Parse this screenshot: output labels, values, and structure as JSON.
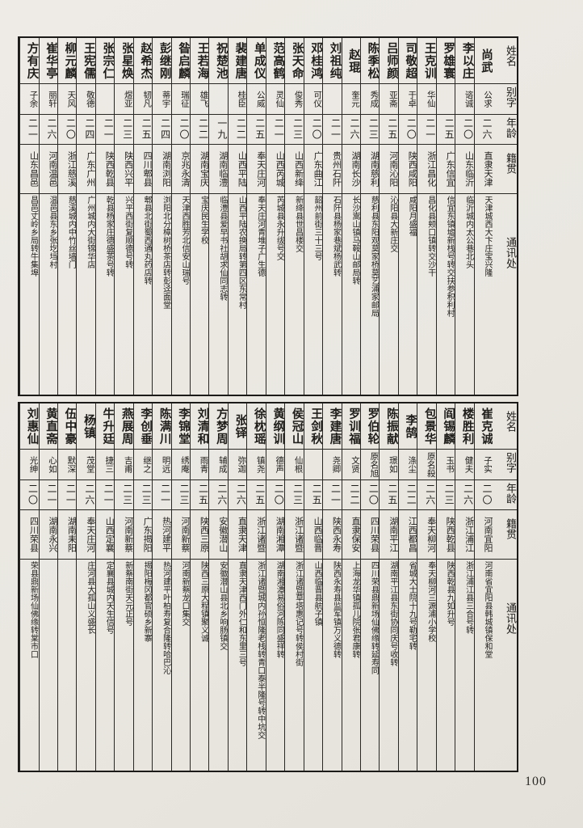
{
  "page": {
    "number": "100"
  },
  "colors": {
    "paper": "#eae7e1",
    "ink": "#1f1d1a",
    "rule": "#2a2825"
  },
  "headers": {
    "name": "姓名",
    "alias": "别字",
    "age": "年龄",
    "origin": "籍贯",
    "contact": "通讯处"
  },
  "tables": [
    {
      "people": [
        {
          "name": "尚武",
          "alias": "公求",
          "age": "二六",
          "origin": "直隶天津",
          "contact": "天津城西大卞庄宝兴隆"
        },
        {
          "name": "李以庄",
          "alias": "谘诚",
          "age": "二〇",
          "origin": "山东临沂",
          "contact": "临沂城内太公巷北头"
        },
        {
          "name": "罗雄寰",
          "alias": "",
          "age": "二五",
          "origin": "广东信宜",
          "contact": "信宜东镇墟新栈号转交扶参积利村"
        },
        {
          "name": "王克训",
          "alias": "华仙",
          "age": "二一",
          "origin": "浙江昌化",
          "contact": "昌化县颊口镇转交沙干"
        },
        {
          "name": "司敬超",
          "alias": "于卓",
          "age": "二〇",
          "origin": "陕西咸阳",
          "contact": "咸阳月盛福"
        },
        {
          "name": "吕师颜",
          "alias": "亚斋",
          "age": "二五",
          "origin": "河南沁阳",
          "contact": "沁阳县大新庄交"
        },
        {
          "name": "陈季松",
          "alias": "秀成",
          "age": "二三",
          "origin": "湖南慈利",
          "contact": "慈利县东阳观莫家桥莫艺浦家邮局"
        },
        {
          "name": "赵琨",
          "alias": "奎元",
          "age": "二六",
          "origin": "湖南长沙",
          "contact": "长沙嵩山镇马鞍山邮局转"
        },
        {
          "name": "刘祖纯",
          "alias": "",
          "age": "二一",
          "origin": "贵州石阡",
          "contact": "石阡县杨家巷斌杨武转"
        },
        {
          "name": "邓桂鸿",
          "alias": "可仪",
          "age": "二〇",
          "origin": "广东曲江",
          "contact": "韶州前街三十三号"
        },
        {
          "name": "张天命",
          "alias": "俊秀",
          "age": "二三",
          "origin": "山西新绛",
          "contact": "新绛县世昌楼交"
        },
        {
          "name": "范高鹤",
          "alias": "灵仙",
          "age": "二一",
          "origin": "山西芮城",
          "contact": "芮城县永升绂号交"
        },
        {
          "name": "单成仪",
          "alias": "公威",
          "age": "二五",
          "origin": "奉天庄河",
          "contact": "奉天庄河青堆子广生德"
        },
        {
          "name": "裴建唐",
          "alias": "桂臣",
          "age": "二二",
          "origin": "山西平陆",
          "contact": "山西平陆农换局转第四区东常村"
        },
        {
          "name": "祝楚池",
          "alias": "",
          "age": "一九",
          "origin": "湖南临澧",
          "contact": "临澧县爱早书社胡求仙同志转"
        },
        {
          "name": "王若海",
          "alias": "雄飞",
          "age": "二二",
          "origin": "湖南宝庆",
          "contact": "宝庆民生学校"
        },
        {
          "name": "昝启麟",
          "alias": "瑞征",
          "age": "二〇",
          "origin": "京兆永清",
          "contact": "天津西胜芳北信安山瑞号"
        },
        {
          "name": "彭继刚",
          "alias": "蒂宇",
          "age": "二四",
          "origin": "湖南浏阳",
          "contact": "浏阳北分樟树桥茶店转彭迳面堂"
        },
        {
          "name": "赵希杰",
          "alias": "韧凡",
          "age": "二五",
          "origin": "四川郫县",
          "contact": "郫县北街蜀西通丸药店转"
        },
        {
          "name": "张星焕",
          "alias": "煜亚",
          "age": "二三",
          "origin": "陕西兴平",
          "contact": "兴平西街复顺德号转"
        },
        {
          "name": "张宗仁",
          "alias": "",
          "age": "二一",
          "origin": "陕西乾县",
          "contact": "乾县杨家庄德盛茶号转"
        },
        {
          "name": "王宪儒",
          "alias": "敬德",
          "age": "二四",
          "origin": "广东广州",
          "contact": "广州城内大街锦华店"
        },
        {
          "name": "柳元麟",
          "alias": "天风",
          "age": "二〇",
          "origin": "浙江慈溪",
          "contact": "慈溪城内中竹丝墙门"
        },
        {
          "name": "崔华亭",
          "alias": "丽轩",
          "age": "二六",
          "origin": "河南温邑",
          "contact": "温邑县东乡张圪垱村"
        },
        {
          "name": "方有庆",
          "alias": "子余",
          "age": "二一",
          "origin": "山东昌邑",
          "contact": "昌邑丈岭乡局转牛集埠"
        }
      ]
    },
    {
      "people": [
        {
          "name": "崔克诚",
          "alias": "子实",
          "age": "二〇",
          "origin": "河南宜阳",
          "contact": "河南省宜阳县韩城镇保和堂"
        },
        {
          "name": "楼胜利",
          "alias": "健夫",
          "age": "二六",
          "origin": "浙江浦江",
          "contact": "浙江浦江县三合号转"
        },
        {
          "name": "阎锡麟",
          "alias": "玉书",
          "age": "二三",
          "origin": "陕西乾县",
          "contact": "陕西乾县九如升号"
        },
        {
          "name": "包景华",
          "alias": "原名殺",
          "age": "二六",
          "origin": "奉天柳河",
          "contact": "奉天柳河三源浦小学校"
        },
        {
          "name": "李鹄",
          "alias": "涤尘",
          "age": "二二",
          "origin": "江西都昌",
          "contact": "省城大士院十九号勒宅转"
        },
        {
          "name": "陈振献",
          "alias": "璟如",
          "age": "二五",
          "origin": "湖南平江",
          "contact": "湖南平江县东街协同庆号收转"
        },
        {
          "name": "罗伯轮",
          "alias": "原名旭",
          "age": "二〇",
          "origin": "四川荣县",
          "contact": "四川荣县鼎新场仙佛缘转延寿同"
        },
        {
          "name": "罗训福",
          "alias": "文贤",
          "age": "二二",
          "origin": "直隶保安",
          "contact": "上海龙华镇孤儿院张君康转"
        },
        {
          "name": "李建唐",
          "alias": "尧卿",
          "age": "二一",
          "origin": "陕西永寿",
          "contact": "陕西永寿县监军镇万义德转"
        },
        {
          "name": "王剑秋",
          "alias": "",
          "age": "二五",
          "origin": "山西临晋",
          "contact": "山西临晋县航子镇"
        },
        {
          "name": "侯冠山",
          "alias": "仙根",
          "age": "二三",
          "origin": "浙江诸暨",
          "contact": "浙江诸暨草塔惠记号转侯村街"
        },
        {
          "name": "黄纲训",
          "alias": "德声",
          "age": "二〇",
          "origin": "湖南湘潭",
          "contact": "湖南湘潭易俗河陈同盛祥转"
        },
        {
          "name": "徐枕瑶",
          "alias": "镇尧",
          "age": "二五",
          "origin": "浙江诸暨",
          "contact": "浙江诸暨城内孙恒隆老栈转青口泰半隆号转中坑交"
        },
        {
          "name": "张铎",
          "alias": "弥迦",
          "age": "二六",
          "origin": "直隶天津",
          "contact": "直隶天津西门外仁和东里三号"
        },
        {
          "name": "方梦周",
          "alias": "辅成",
          "age": "二六",
          "origin": "安徽潜山",
          "contact": "安徽潜山县北乡响肠镇交"
        },
        {
          "name": "刘清和",
          "alias": "雨青",
          "age": "二五",
          "origin": "陕西三原",
          "contact": "陕西三原大程镇聚义诚"
        },
        {
          "name": "李锦堂",
          "alias": "绣庵",
          "age": "二三",
          "origin": "河南新蔡",
          "contact": "河南新蔡龙口集交"
        },
        {
          "name": "陈满川",
          "alias": "明远",
          "age": "二一",
          "origin": "热河建平",
          "contact": "热河建平叶柏寿复合隆转哈巴沁"
        },
        {
          "name": "李创垂",
          "alias": "继之",
          "age": "二三",
          "origin": "广东揭阳",
          "contact": "揭阳梅冈都官硕乡新寨"
        },
        {
          "name": "燕展周",
          "alias": "吉甫",
          "age": "二三",
          "origin": "河南新蔡",
          "contact": "新蔡南街天元正号"
        },
        {
          "name": "牛升廷",
          "alias": "捷三",
          "age": "二一",
          "origin": "山西定襄",
          "contact": "定襄县城内天生信号"
        },
        {
          "name": "杨镇",
          "alias": "茂堂",
          "age": "二六",
          "origin": "奉天庄河",
          "contact": "庄河县大孤山义盛长"
        },
        {
          "name": "伍中豪",
          "alias": "默深",
          "age": "二一",
          "origin": "湖南耒阳",
          "contact": ""
        },
        {
          "name": "黄直斋",
          "alias": "心如",
          "age": "二一",
          "origin": "湖南永兴",
          "contact": ""
        },
        {
          "name": "刘惠仙",
          "alias": "光绅",
          "age": "二〇",
          "origin": "四川荣县",
          "contact": "荣县鼎新场仙佛缘转棠市口"
        }
      ]
    }
  ]
}
